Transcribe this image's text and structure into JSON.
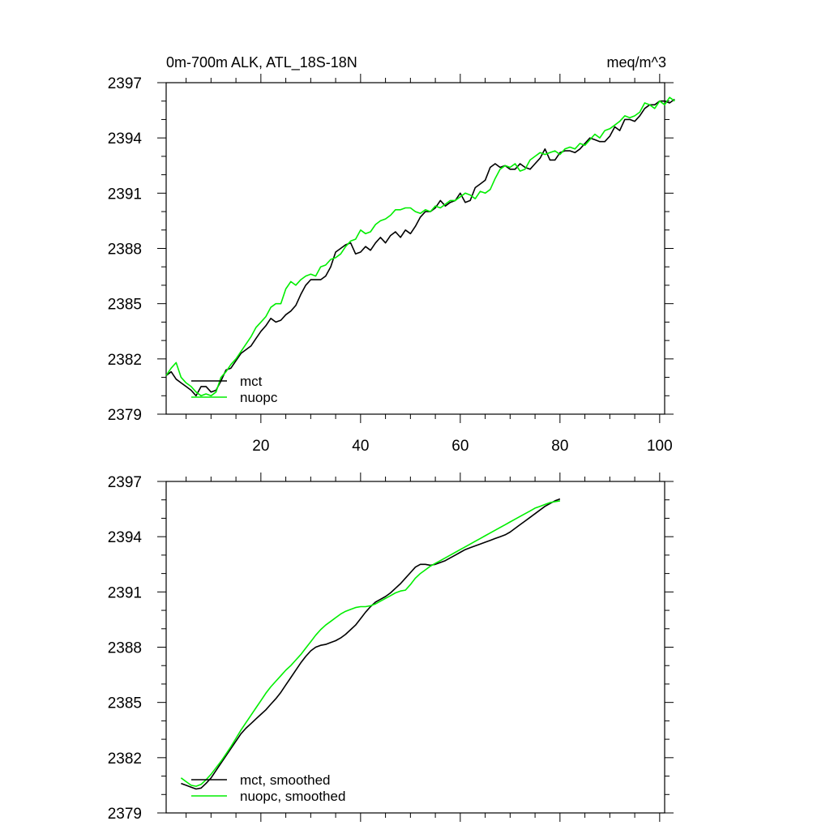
{
  "chart_data": [
    {
      "type": "line",
      "title": "0m-700m ALK, ATL_18S-18N",
      "units": "meq/m^3",
      "xlabel": "",
      "ylabel": "",
      "xlim": [
        1,
        101
      ],
      "ylim": [
        2379,
        2397
      ],
      "xticks": [
        20,
        40,
        60,
        80,
        100
      ],
      "yticks": [
        2379,
        2382,
        2385,
        2388,
        2391,
        2394,
        2397
      ],
      "show_xtick_labels": true,
      "legend": "bottom-left",
      "colors": {
        "mct": "#000000",
        "nuopc": "#00ee00"
      },
      "series": [
        {
          "name": "mct",
          "x_start": 1,
          "values": [
            2381.1,
            2381.3,
            2380.9,
            2380.7,
            2380.5,
            2380.3,
            2380.0,
            2380.5,
            2380.5,
            2380.2,
            2380.3,
            2380.8,
            2381.4,
            2381.5,
            2381.9,
            2382.3,
            2382.5,
            2382.7,
            2383.1,
            2383.5,
            2383.8,
            2384.2,
            2384.0,
            2384.1,
            2384.4,
            2384.6,
            2384.9,
            2385.5,
            2386.0,
            2386.3,
            2386.3,
            2386.3,
            2386.5,
            2387.0,
            2387.8,
            2388.0,
            2388.2,
            2388.3,
            2387.7,
            2387.8,
            2388.1,
            2387.9,
            2388.3,
            2388.6,
            2388.3,
            2388.7,
            2388.9,
            2388.6,
            2389.0,
            2388.8,
            2389.2,
            2389.7,
            2390.0,
            2390.0,
            2390.2,
            2390.6,
            2390.3,
            2390.5,
            2390.6,
            2391.0,
            2390.5,
            2390.6,
            2391.3,
            2391.5,
            2391.7,
            2392.4,
            2392.6,
            2392.4,
            2392.5,
            2392.3,
            2392.3,
            2392.6,
            2392.4,
            2392.3,
            2392.6,
            2392.9,
            2393.4,
            2392.8,
            2392.8,
            2393.2,
            2393.3,
            2393.3,
            2393.2,
            2393.4,
            2393.7,
            2394.0,
            2393.9,
            2393.8,
            2393.8,
            2394.1,
            2394.6,
            2394.4,
            2395.0,
            2395.0,
            2394.9,
            2395.2,
            2395.6,
            2395.8,
            2395.8,
            2396.0,
            2396.0,
            2395.9,
            2396.1
          ]
        },
        {
          "name": "nuopc",
          "x_start": 1,
          "values": [
            2381.1,
            2381.5,
            2381.8,
            2381.0,
            2380.7,
            2380.5,
            2380.2,
            2380.0,
            2380.1,
            2380.0,
            2380.2,
            2381.0,
            2381.3,
            2381.7,
            2382.0,
            2382.4,
            2382.8,
            2383.2,
            2383.7,
            2384.0,
            2384.3,
            2384.8,
            2385.0,
            2385.0,
            2385.8,
            2386.2,
            2386.0,
            2386.3,
            2386.5,
            2386.6,
            2386.5,
            2387.0,
            2387.1,
            2387.4,
            2387.5,
            2387.7,
            2388.1,
            2388.4,
            2388.5,
            2389.0,
            2388.8,
            2388.9,
            2389.3,
            2389.5,
            2389.6,
            2389.8,
            2390.1,
            2390.1,
            2390.2,
            2390.2,
            2390.0,
            2389.9,
            2390.1,
            2390.0,
            2390.3,
            2390.2,
            2390.4,
            2390.6,
            2390.6,
            2390.8,
            2391.0,
            2390.9,
            2390.7,
            2391.1,
            2391.0,
            2391.2,
            2391.8,
            2392.3,
            2392.5,
            2392.4,
            2392.6,
            2392.2,
            2392.3,
            2392.8,
            2393.0,
            2393.2,
            2393.1,
            2393.2,
            2393.3,
            2393.1,
            2393.4,
            2393.5,
            2393.4,
            2393.7,
            2393.6,
            2393.9,
            2394.2,
            2394.0,
            2394.4,
            2394.5,
            2394.7,
            2394.9,
            2395.2,
            2395.1,
            2395.2,
            2395.4,
            2395.9,
            2395.8,
            2395.6,
            2396.0,
            2395.8,
            2396.2,
            2396.0
          ]
        }
      ]
    },
    {
      "type": "line",
      "title": "",
      "xlabel": "",
      "ylabel": "",
      "xlim": [
        1,
        101
      ],
      "ylim": [
        2379,
        2397
      ],
      "xticks": [
        20,
        40,
        60,
        80,
        100
      ],
      "yticks": [
        2379,
        2382,
        2385,
        2388,
        2391,
        2394,
        2397
      ],
      "show_xtick_labels": false,
      "legend": "bottom-left",
      "colors": {
        "mct": "#000000",
        "nuopc": "#00ee00"
      },
      "series": [
        {
          "name": "mct, smoothed",
          "x_start": 4,
          "values": [
            2380.6,
            2380.5,
            2380.4,
            2380.3,
            2380.35,
            2380.6,
            2380.9,
            2381.3,
            2381.7,
            2382.1,
            2382.5,
            2382.9,
            2383.3,
            2383.6,
            2383.85,
            2384.1,
            2384.35,
            2384.6,
            2384.9,
            2385.2,
            2385.55,
            2385.95,
            2386.35,
            2386.75,
            2387.15,
            2387.5,
            2387.8,
            2388.0,
            2388.1,
            2388.15,
            2388.25,
            2388.35,
            2388.5,
            2388.7,
            2388.95,
            2389.2,
            2389.55,
            2389.9,
            2390.2,
            2390.45,
            2390.6,
            2390.75,
            2390.95,
            2391.2,
            2391.45,
            2391.75,
            2392.05,
            2392.35,
            2392.5,
            2392.5,
            2392.45,
            2392.5,
            2392.6,
            2392.7,
            2392.85,
            2393.0,
            2393.15,
            2393.3,
            2393.4,
            2393.5,
            2393.6,
            2393.7,
            2393.8,
            2393.9,
            2394.0,
            2394.1,
            2394.25,
            2394.45,
            2394.65,
            2394.85,
            2395.05,
            2395.25,
            2395.45,
            2395.65,
            2395.8,
            2395.95,
            2396.05
          ]
        },
        {
          "name": "nuopc, smoothed",
          "x_start": 4,
          "values": [
            2380.9,
            2380.7,
            2380.5,
            2380.45,
            2380.55,
            2380.8,
            2381.1,
            2381.45,
            2381.8,
            2382.2,
            2382.6,
            2383.05,
            2383.5,
            2383.9,
            2384.3,
            2384.7,
            2385.1,
            2385.5,
            2385.85,
            2386.15,
            2386.45,
            2386.75,
            2387.0,
            2387.3,
            2387.6,
            2387.95,
            2388.3,
            2388.65,
            2388.95,
            2389.2,
            2389.4,
            2389.6,
            2389.8,
            2389.95,
            2390.05,
            2390.15,
            2390.2,
            2390.2,
            2390.25,
            2390.35,
            2390.5,
            2390.65,
            2390.8,
            2390.95,
            2391.05,
            2391.1,
            2391.4,
            2391.75,
            2392.0,
            2392.2,
            2392.4,
            2392.55,
            2392.7,
            2392.85,
            2393.0,
            2393.15,
            2393.3,
            2393.45,
            2393.6,
            2393.75,
            2393.9,
            2394.05,
            2394.2,
            2394.35,
            2394.5,
            2394.65,
            2394.8,
            2394.95,
            2395.1,
            2395.25,
            2395.4,
            2395.55,
            2395.65,
            2395.75,
            2395.85,
            2395.9,
            2395.95
          ]
        }
      ]
    }
  ]
}
